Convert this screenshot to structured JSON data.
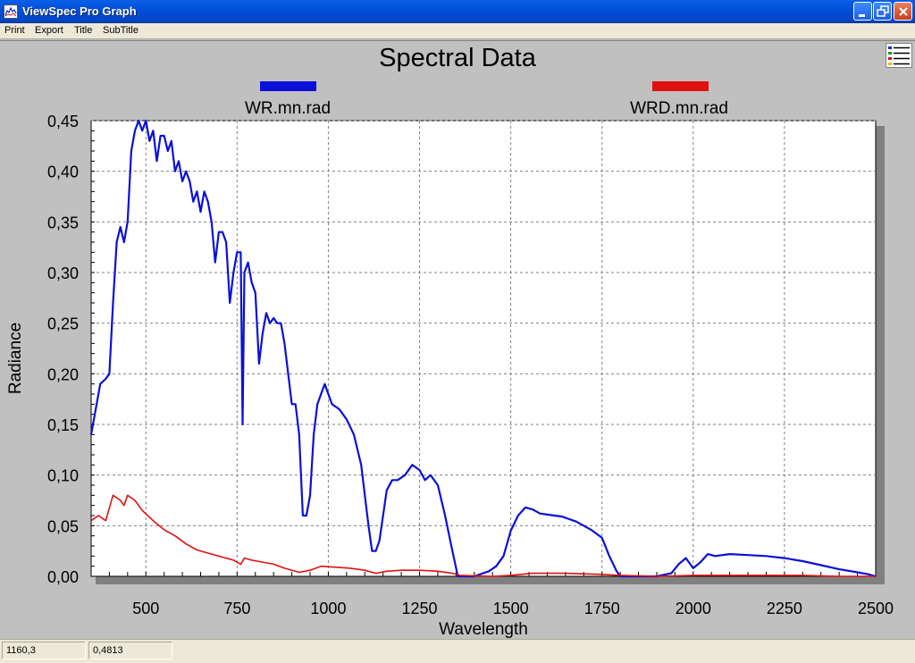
{
  "window": {
    "title": "ViewSpec Pro Graph"
  },
  "menu": {
    "items": [
      "Print",
      "Export",
      "Title",
      "SubTitle"
    ]
  },
  "status": {
    "x_readout": "1160,3",
    "y_readout": "0,4813"
  },
  "colors": {
    "series_1": "#0a10d8",
    "series_2": "#e01010",
    "plot_bg": "#ffffff",
    "window_bg": "#c0c0c0"
  },
  "chart_data": {
    "type": "line",
    "title": "Spectral Data",
    "xlabel": "Wavelength",
    "ylabel": "Radiance",
    "xlim": [
      350,
      2500
    ],
    "ylim": [
      0,
      0.45
    ],
    "x_ticks": [
      500,
      750,
      1000,
      1250,
      1500,
      1750,
      2000,
      2250,
      2500
    ],
    "x_tick_labels": [
      "500",
      "750",
      "1000",
      "1250",
      "1500",
      "1750",
      "2000",
      "2250",
      "2500"
    ],
    "y_ticks": [
      0,
      0.05,
      0.1,
      0.15,
      0.2,
      0.25,
      0.3,
      0.35,
      0.4,
      0.45
    ],
    "y_tick_labels": [
      "0,00",
      "0,05",
      "0,10",
      "0,15",
      "0,20",
      "0,25",
      "0,30",
      "0,35",
      "0,40",
      "0,45"
    ],
    "grid": true,
    "legend_position": "top",
    "series": [
      {
        "name": "WR.mn.rad",
        "color": "#0a10d8",
        "points": [
          [
            350,
            0.14
          ],
          [
            360,
            0.16
          ],
          [
            375,
            0.19
          ],
          [
            390,
            0.195
          ],
          [
            400,
            0.2
          ],
          [
            410,
            0.27
          ],
          [
            420,
            0.33
          ],
          [
            430,
            0.345
          ],
          [
            440,
            0.33
          ],
          [
            450,
            0.35
          ],
          [
            460,
            0.42
          ],
          [
            470,
            0.44
          ],
          [
            480,
            0.45
          ],
          [
            490,
            0.44
          ],
          [
            500,
            0.45
          ],
          [
            510,
            0.43
          ],
          [
            520,
            0.44
          ],
          [
            530,
            0.41
          ],
          [
            540,
            0.435
          ],
          [
            550,
            0.435
          ],
          [
            560,
            0.42
          ],
          [
            570,
            0.43
          ],
          [
            580,
            0.4
          ],
          [
            590,
            0.41
          ],
          [
            600,
            0.39
          ],
          [
            610,
            0.4
          ],
          [
            620,
            0.39
          ],
          [
            630,
            0.37
          ],
          [
            640,
            0.38
          ],
          [
            650,
            0.36
          ],
          [
            660,
            0.38
          ],
          [
            670,
            0.37
          ],
          [
            680,
            0.35
          ],
          [
            690,
            0.31
          ],
          [
            700,
            0.34
          ],
          [
            710,
            0.34
          ],
          [
            720,
            0.33
          ],
          [
            730,
            0.27
          ],
          [
            740,
            0.3
          ],
          [
            750,
            0.32
          ],
          [
            760,
            0.32
          ],
          [
            765,
            0.15
          ],
          [
            770,
            0.3
          ],
          [
            780,
            0.31
          ],
          [
            790,
            0.29
          ],
          [
            800,
            0.28
          ],
          [
            810,
            0.21
          ],
          [
            820,
            0.24
          ],
          [
            830,
            0.26
          ],
          [
            840,
            0.25
          ],
          [
            850,
            0.255
          ],
          [
            860,
            0.25
          ],
          [
            870,
            0.25
          ],
          [
            880,
            0.23
          ],
          [
            890,
            0.2
          ],
          [
            900,
            0.17
          ],
          [
            910,
            0.17
          ],
          [
            920,
            0.14
          ],
          [
            930,
            0.06
          ],
          [
            940,
            0.06
          ],
          [
            950,
            0.08
          ],
          [
            960,
            0.14
          ],
          [
            970,
            0.17
          ],
          [
            980,
            0.18
          ],
          [
            990,
            0.19
          ],
          [
            1000,
            0.18
          ],
          [
            1010,
            0.17
          ],
          [
            1030,
            0.165
          ],
          [
            1050,
            0.155
          ],
          [
            1070,
            0.14
          ],
          [
            1090,
            0.11
          ],
          [
            1110,
            0.05
          ],
          [
            1120,
            0.025
          ],
          [
            1130,
            0.025
          ],
          [
            1140,
            0.035
          ],
          [
            1150,
            0.06
          ],
          [
            1160,
            0.085
          ],
          [
            1175,
            0.095
          ],
          [
            1190,
            0.095
          ],
          [
            1210,
            0.1
          ],
          [
            1230,
            0.11
          ],
          [
            1250,
            0.105
          ],
          [
            1265,
            0.095
          ],
          [
            1280,
            0.1
          ],
          [
            1300,
            0.09
          ],
          [
            1320,
            0.06
          ],
          [
            1340,
            0.025
          ],
          [
            1355,
            0.0
          ],
          [
            1400,
            0.0
          ],
          [
            1440,
            0.005
          ],
          [
            1460,
            0.01
          ],
          [
            1480,
            0.02
          ],
          [
            1500,
            0.045
          ],
          [
            1520,
            0.06
          ],
          [
            1540,
            0.068
          ],
          [
            1560,
            0.066
          ],
          [
            1580,
            0.062
          ],
          [
            1600,
            0.061
          ],
          [
            1640,
            0.059
          ],
          [
            1680,
            0.054
          ],
          [
            1720,
            0.046
          ],
          [
            1750,
            0.038
          ],
          [
            1770,
            0.02
          ],
          [
            1790,
            0.005
          ],
          [
            1800,
            0.0
          ],
          [
            1900,
            0.0
          ],
          [
            1940,
            0.003
          ],
          [
            1960,
            0.012
          ],
          [
            1980,
            0.018
          ],
          [
            2000,
            0.008
          ],
          [
            2020,
            0.014
          ],
          [
            2040,
            0.022
          ],
          [
            2060,
            0.02
          ],
          [
            2100,
            0.022
          ],
          [
            2150,
            0.021
          ],
          [
            2200,
            0.02
          ],
          [
            2250,
            0.018
          ],
          [
            2300,
            0.015
          ],
          [
            2350,
            0.011
          ],
          [
            2400,
            0.007
          ],
          [
            2450,
            0.004
          ],
          [
            2480,
            0.002
          ],
          [
            2500,
            0.0
          ]
        ]
      },
      {
        "name": "WRD.mn.rad",
        "color": "#e01010",
        "points": [
          [
            350,
            0.055
          ],
          [
            370,
            0.06
          ],
          [
            390,
            0.055
          ],
          [
            410,
            0.08
          ],
          [
            430,
            0.075
          ],
          [
            440,
            0.07
          ],
          [
            450,
            0.08
          ],
          [
            470,
            0.075
          ],
          [
            490,
            0.065
          ],
          [
            520,
            0.055
          ],
          [
            550,
            0.046
          ],
          [
            580,
            0.04
          ],
          [
            610,
            0.032
          ],
          [
            640,
            0.026
          ],
          [
            680,
            0.022
          ],
          [
            710,
            0.019
          ],
          [
            740,
            0.016
          ],
          [
            760,
            0.012
          ],
          [
            770,
            0.018
          ],
          [
            790,
            0.016
          ],
          [
            820,
            0.014
          ],
          [
            850,
            0.012
          ],
          [
            880,
            0.008
          ],
          [
            920,
            0.004
          ],
          [
            950,
            0.006
          ],
          [
            980,
            0.01
          ],
          [
            1020,
            0.009
          ],
          [
            1060,
            0.008
          ],
          [
            1100,
            0.006
          ],
          [
            1130,
            0.003
          ],
          [
            1160,
            0.005
          ],
          [
            1200,
            0.006
          ],
          [
            1250,
            0.006
          ],
          [
            1300,
            0.005
          ],
          [
            1340,
            0.003
          ],
          [
            1360,
            0.001
          ],
          [
            1450,
            0.0
          ],
          [
            1500,
            0.001
          ],
          [
            1560,
            0.003
          ],
          [
            1650,
            0.003
          ],
          [
            1740,
            0.002
          ],
          [
            1800,
            0.001
          ],
          [
            1900,
            0.0
          ],
          [
            2000,
            0.001
          ],
          [
            2100,
            0.001
          ],
          [
            2200,
            0.001
          ],
          [
            2300,
            0.001
          ],
          [
            2400,
            0.0
          ],
          [
            2500,
            0.0
          ]
        ]
      }
    ]
  }
}
